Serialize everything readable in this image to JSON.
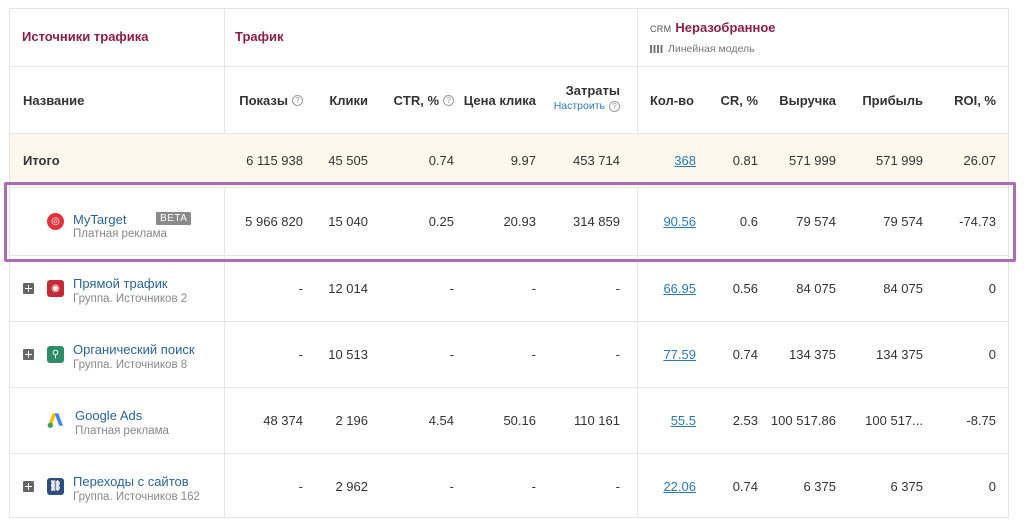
{
  "groups": {
    "sources": "Источники трафика",
    "traffic": "Трафик",
    "crm_tag": "CRM",
    "crm": "Неразобранное",
    "crm_model": "Линейная модель"
  },
  "columns": {
    "name": "Название",
    "impressions": "Показы",
    "clicks": "Клики",
    "ctr": "CTR, %",
    "cpc": "Цена клика",
    "cost": "Затраты",
    "configure": "Настроить",
    "count": "Кол-во",
    "cr": "CR, %",
    "revenue": "Выручка",
    "profit": "Прибыль",
    "roi": "ROI, %"
  },
  "total": {
    "name": "Итого",
    "impressions": "6 115 938",
    "clicks": "45 505",
    "ctr": "0.74",
    "cpc": "9.97",
    "cost": "453 714",
    "count": "368",
    "cr": "0.81",
    "revenue": "571 999",
    "profit": "571 999",
    "roi": "26.07"
  },
  "rows": [
    {
      "name": "MyTarget",
      "sub": "Платная реклама",
      "badge": "BETA",
      "icon": "target-icon",
      "impressions": "5 966 820",
      "clicks": "15 040",
      "ctr": "0.25",
      "cpc": "20.93",
      "cost": "314 859",
      "count": "90.56",
      "cr": "0.6",
      "revenue": "79 574",
      "profit": "79 574",
      "roi": "-74.73"
    },
    {
      "name": "Прямой трафик",
      "sub": "Группа. Источников 2",
      "icon": "direct-icon",
      "impressions": "-",
      "clicks": "12 014",
      "ctr": "-",
      "cpc": "-",
      "cost": "-",
      "count": "66.95",
      "cr": "0.56",
      "revenue": "84 075",
      "profit": "84 075",
      "roi": "0"
    },
    {
      "name": "Органический поиск",
      "sub": "Группа. Источников 8",
      "icon": "search-icon",
      "impressions": "-",
      "clicks": "10 513",
      "ctr": "-",
      "cpc": "-",
      "cost": "-",
      "count": "77.59",
      "cr": "0.74",
      "revenue": "134 375",
      "profit": "134 375",
      "roi": "0"
    },
    {
      "name": "Google Ads",
      "sub": "Платная реклама",
      "icon": "google-ads-icon",
      "impressions": "48 374",
      "clicks": "2 196",
      "ctr": "4.54",
      "cpc": "50.16",
      "cost": "110 161",
      "count": "55.5",
      "cr": "2.53",
      "revenue": "100 517.86",
      "profit": "100 517...",
      "roi": "-8.75"
    },
    {
      "name": "Переходы с сайтов",
      "sub": "Группа. Источников 162",
      "icon": "link-icon",
      "impressions": "-",
      "clicks": "2 962",
      "ctr": "-",
      "cpc": "-",
      "cost": "-",
      "count": "22.06",
      "cr": "0.74",
      "revenue": "6 375",
      "profit": "6 375",
      "roi": "0"
    }
  ],
  "colors": {
    "group_title": "#8c1d4d",
    "link": "#2a7ab5",
    "total_bg": "#fdf7ec",
    "highlight": "#a96eb1",
    "mytarget": "#e0343a",
    "direct": "#c62a35",
    "organic": "#2e8c6b",
    "referral": "#2b4f78"
  }
}
